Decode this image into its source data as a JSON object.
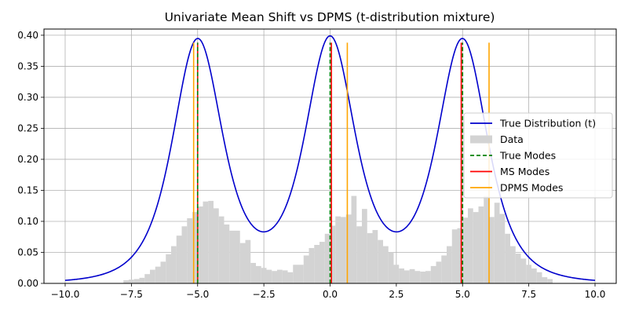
{
  "chart_data": {
    "type": "line",
    "title": "Univariate Mean Shift vs DPMS (t-distribution mixture)",
    "xlabel": "",
    "ylabel": "",
    "xlim": [
      -10.8,
      10.8
    ],
    "ylim": [
      0,
      0.41
    ],
    "grid": true,
    "x_ticks": [
      -10.0,
      -7.5,
      -5.0,
      -2.5,
      0.0,
      2.5,
      5.0,
      7.5,
      10.0
    ],
    "x_tick_labels": [
      "−10.0",
      "−7.5",
      "−5.0",
      "−2.5",
      "0.0",
      "2.5",
      "5.0",
      "7.5",
      "10.0"
    ],
    "y_ticks": [
      0.0,
      0.05,
      0.1,
      0.15,
      0.2,
      0.25,
      0.3,
      0.35,
      0.4
    ],
    "y_tick_labels": [
      "0.00",
      "0.05",
      "0.10",
      "0.15",
      "0.20",
      "0.25",
      "0.30",
      "0.35",
      "0.40"
    ],
    "legend_position": "center-right",
    "series": [
      {
        "name": "True Distribution (t)",
        "kind": "line",
        "color": "#0000cc",
        "distribution": "student-t mixture",
        "centers": [
          -5,
          0,
          5
        ],
        "df": 3,
        "scale": 1.0,
        "peak": 0.39,
        "x_range": [
          -10,
          10
        ]
      },
      {
        "name": "Data",
        "kind": "histogram",
        "color": "#d3d3d3",
        "bin_start": -7.8,
        "bin_width": 0.2,
        "counts": [
          0.005,
          0.006,
          0.007,
          0.009,
          0.015,
          0.022,
          0.027,
          0.035,
          0.047,
          0.06,
          0.077,
          0.092,
          0.105,
          0.115,
          0.124,
          0.132,
          0.133,
          0.121,
          0.108,
          0.095,
          0.085,
          0.085,
          0.065,
          0.07,
          0.033,
          0.028,
          0.025,
          0.022,
          0.02,
          0.022,
          0.021,
          0.018,
          0.03,
          0.03,
          0.045,
          0.057,
          0.062,
          0.067,
          0.08,
          0.093,
          0.108,
          0.107,
          0.111,
          0.141,
          0.092,
          0.12,
          0.081,
          0.086,
          0.07,
          0.06,
          0.05,
          0.03,
          0.024,
          0.021,
          0.023,
          0.02,
          0.019,
          0.02,
          0.028,
          0.035,
          0.045,
          0.06,
          0.087,
          0.089,
          0.106,
          0.121,
          0.115,
          0.124,
          0.141,
          0.107,
          0.13,
          0.112,
          0.08,
          0.06,
          0.048,
          0.04,
          0.03,
          0.024,
          0.018,
          0.01,
          0.007
        ]
      },
      {
        "name": "True Modes",
        "kind": "vline",
        "color": "#008000",
        "dash": true,
        "x": [
          -5,
          0,
          5
        ],
        "height": 0.388
      },
      {
        "name": "MS Modes",
        "kind": "vline",
        "color": "#ff0000",
        "x": [
          -5.0,
          0.05,
          4.95
        ],
        "height": 0.388
      },
      {
        "name": "DPMS Modes",
        "kind": "vline",
        "color": "#ffa500",
        "x": [
          -5.15,
          0.65,
          6.0
        ],
        "height": 0.388
      }
    ]
  }
}
